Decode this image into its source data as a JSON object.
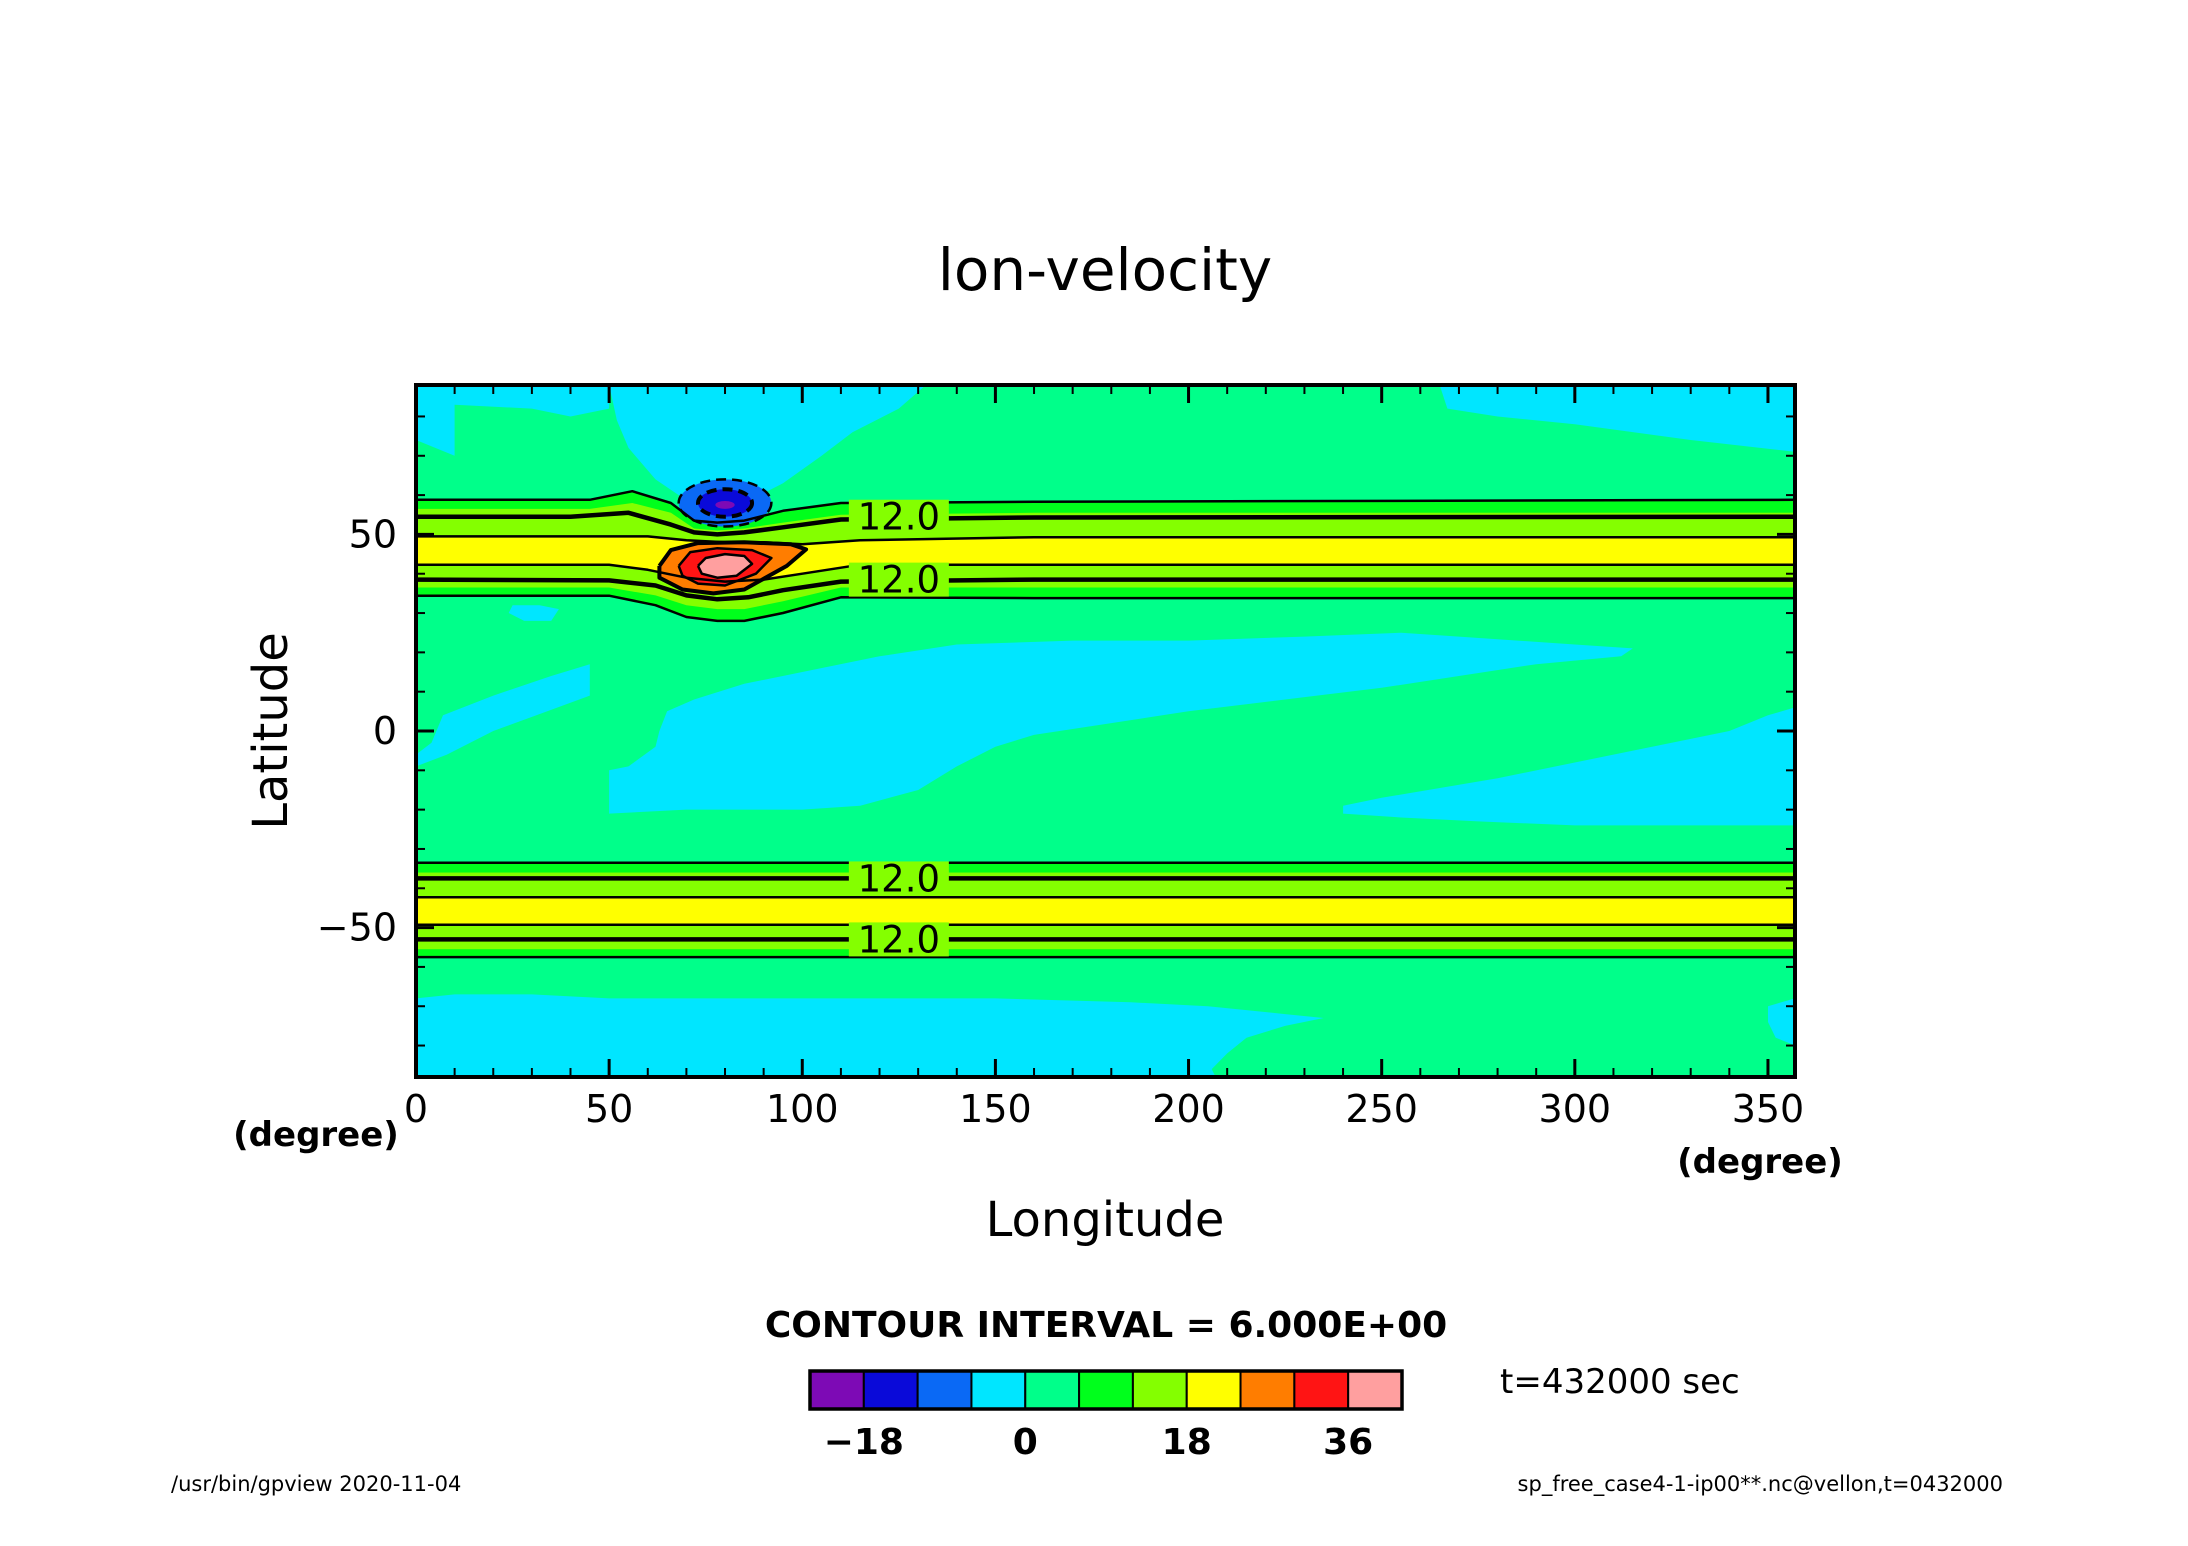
{
  "chart_data": {
    "type": "heatmap",
    "title": "lon-velocity",
    "xlabel": "Longitude",
    "ylabel": "Latitude",
    "x_unit": "(degree)",
    "y_unit": "(degree)",
    "xlim": [
      0,
      357
    ],
    "ylim": [
      -88,
      88
    ],
    "x_ticks": [
      0,
      50,
      100,
      150,
      200,
      250,
      300,
      350
    ],
    "y_ticks": [
      50,
      0,
      -50
    ],
    "contour_interval_text": "CONTOUR INTERVAL = 6.000E+00",
    "contour_labels": [
      {
        "text": "12.0",
        "lon": 125,
        "lat": 54.5
      },
      {
        "text": "12.0",
        "lon": 125,
        "lat": 38.5
      },
      {
        "text": "12.0",
        "lon": 125,
        "lat": -37.5
      },
      {
        "text": "12.0",
        "lon": 125,
        "lat": -53
      }
    ],
    "color_levels": {
      "boundaries": [
        -24,
        -18,
        -12,
        -6,
        0,
        6,
        12,
        18,
        24,
        30,
        36,
        42
      ],
      "colors": [
        "#7d0ab5",
        "#0a0ad9",
        "#0a69f5",
        "#00e6ff",
        "#00ff8a",
        "#00ff1c",
        "#84ff00",
        "#ffff00",
        "#ff7d00",
        "#ff1414",
        "#ff9f9f"
      ],
      "tick_labels": [
        "-18",
        "0",
        "18",
        "36"
      ],
      "tick_values": [
        -18,
        0,
        18,
        36
      ]
    },
    "grid": false,
    "legend": "bottom colorbar"
  },
  "annotations": {
    "time_label": "t=432000 sec",
    "footer_left": "/usr/bin/gpview   2020-11-04",
    "footer_right": "sp_free_case4-1-ip00**.nc@vellon,t=0432000"
  }
}
